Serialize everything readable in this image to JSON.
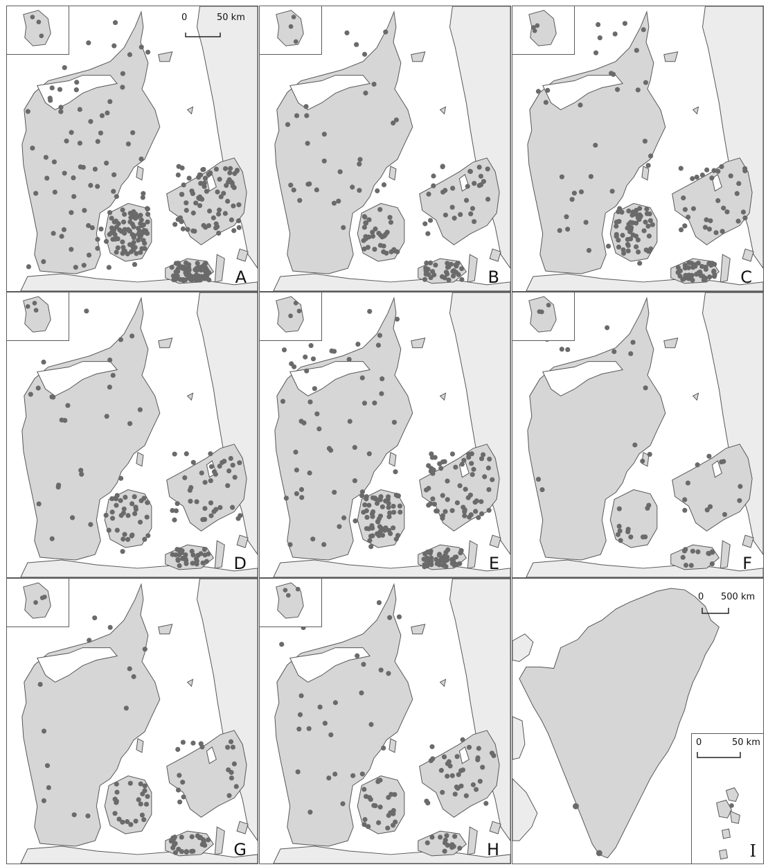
{
  "colors": {
    "land": "#d6d6d6",
    "neighbour_land": "#ececec",
    "coast_line": "#555555",
    "point": "#6a6a6a",
    "frame": "#5a5a5a"
  },
  "scale_bar_denmark": {
    "zero": "0",
    "end": "50 km"
  },
  "scale_bar_greenland": {
    "zero": "0",
    "end": "500 km"
  },
  "scale_bar_faroe": {
    "zero": "0",
    "end": "50 km"
  },
  "panels": [
    {
      "letter": "A",
      "seed": 11,
      "density": "very-high"
    },
    {
      "letter": "B",
      "seed": 23,
      "density": "medium"
    },
    {
      "letter": "C",
      "seed": 37,
      "density": "medium-high"
    },
    {
      "letter": "D",
      "seed": 41,
      "density": "medium"
    },
    {
      "letter": "E",
      "seed": 53,
      "density": "high"
    },
    {
      "letter": "F",
      "seed": 67,
      "density": "coastal-sparse"
    },
    {
      "letter": "G",
      "seed": 79,
      "density": "coastal"
    },
    {
      "letter": "H",
      "seed": 83,
      "density": "medium-low"
    },
    {
      "letter": "I",
      "region": "Greenland and Faroe Islands",
      "density": "few"
    }
  ]
}
